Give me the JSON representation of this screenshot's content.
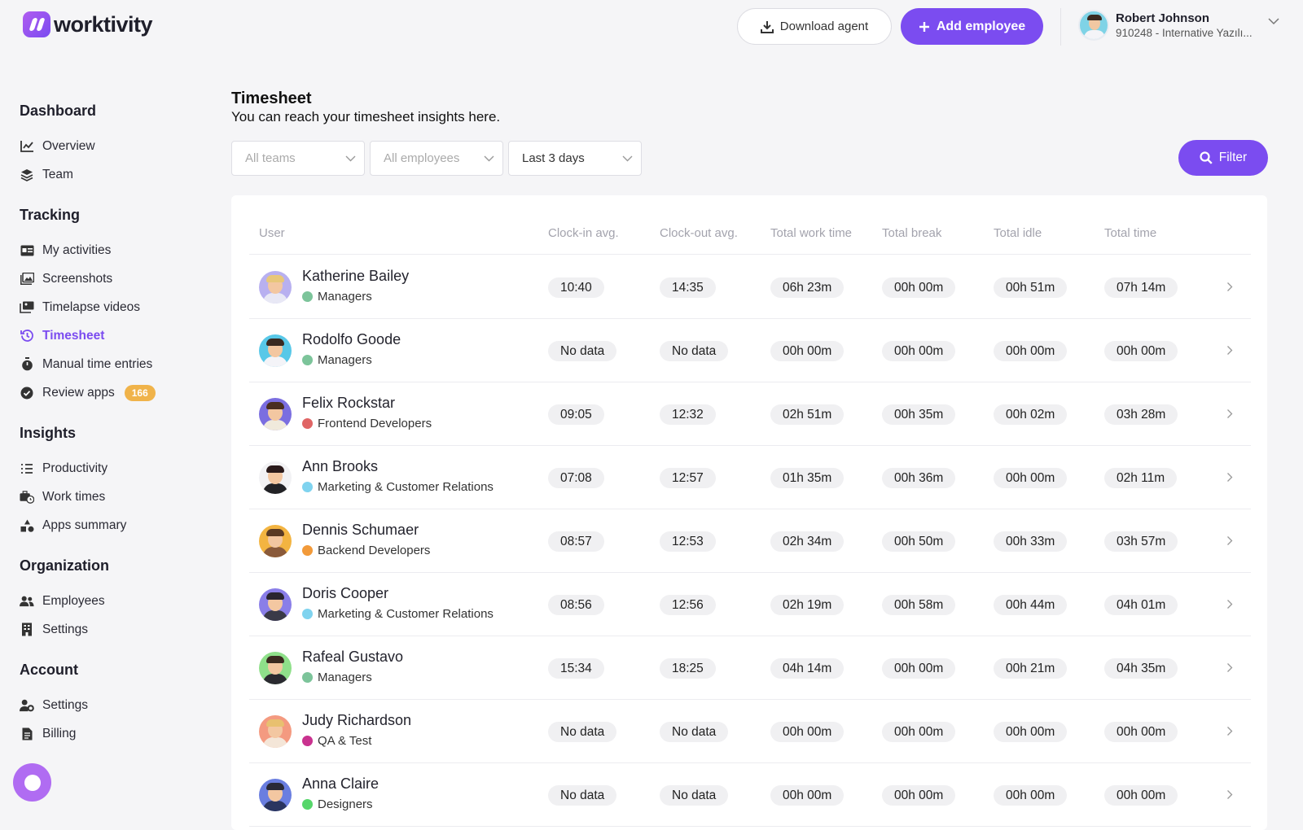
{
  "brand": {
    "name": "worktivity"
  },
  "header": {
    "download_label": "Download agent",
    "add_employee_label": "Add employee",
    "user_name": "Robert Johnson",
    "user_org": "910248 - Internative Yazılı..."
  },
  "sidebar": {
    "sections": [
      {
        "title": "Dashboard",
        "items": [
          {
            "label": "Overview",
            "icon": "chart-line-icon"
          },
          {
            "label": "Team",
            "icon": "layers-icon"
          }
        ]
      },
      {
        "title": "Tracking",
        "items": [
          {
            "label": "My activities",
            "icon": "id-card-icon"
          },
          {
            "label": "Screenshots",
            "icon": "image-icon"
          },
          {
            "label": "Timelapse videos",
            "icon": "images-icon"
          },
          {
            "label": "Timesheet",
            "icon": "history-icon",
            "active": true
          },
          {
            "label": "Manual time entries",
            "icon": "stopwatch-icon"
          },
          {
            "label": "Review apps",
            "icon": "check-circle-icon",
            "badge": "166"
          }
        ]
      },
      {
        "title": "Insights",
        "items": [
          {
            "label": "Productivity",
            "icon": "list-icon"
          },
          {
            "label": "Work times",
            "icon": "briefcase-clock-icon"
          },
          {
            "label": "Apps summary",
            "icon": "shapes-icon"
          }
        ]
      },
      {
        "title": "Organization",
        "items": [
          {
            "label": "Employees",
            "icon": "users-icon"
          },
          {
            "label": "Settings",
            "icon": "building-icon"
          }
        ]
      },
      {
        "title": "Account",
        "items": [
          {
            "label": "Settings",
            "icon": "user-gear-icon"
          },
          {
            "label": "Billing",
            "icon": "receipt-icon"
          }
        ]
      }
    ]
  },
  "page": {
    "title": "Timesheet",
    "subtitle": "You can reach your timesheet insights here."
  },
  "filters": {
    "teams": "All teams",
    "employees": "All employees",
    "range": "Last 3 days",
    "filter_label": "Filter"
  },
  "table": {
    "columns": [
      "User",
      "Clock-in avg.",
      "Clock-out avg.",
      "Total work time",
      "Total break",
      "Total idle",
      "Total time"
    ],
    "rows": [
      {
        "name": "Katherine Bailey",
        "team": "Managers",
        "team_color": "#7cc49a",
        "avatar_bg": "#b8b0f0",
        "hair": "#e8c77a",
        "shirt": "#e8e8f5",
        "clock_in": "10:40",
        "clock_out": "14:35",
        "work": "06h 23m",
        "break": "00h 00m",
        "idle": "00h 51m",
        "total": "07h 14m"
      },
      {
        "name": "Rodolfo Goode",
        "team": "Managers",
        "team_color": "#7cc49a",
        "avatar_bg": "#58c8e8",
        "hair": "#3a2a22",
        "shirt": "#f4f4f8",
        "clock_in": "No data",
        "clock_out": "No data",
        "work": "00h 00m",
        "break": "00h 00m",
        "idle": "00h 00m",
        "total": "00h 00m"
      },
      {
        "name": "Felix Rockstar",
        "team": "Frontend Developers",
        "team_color": "#e06565",
        "avatar_bg": "#7b6ee0",
        "hair": "#4a2e20",
        "shirt": "#f0eadc",
        "clock_in": "09:05",
        "clock_out": "12:32",
        "work": "02h 51m",
        "break": "00h 35m",
        "idle": "00h 02m",
        "total": "03h 28m"
      },
      {
        "name": "Ann Brooks",
        "team": "Marketing & Customer Relations",
        "team_color": "#7fd3ef",
        "avatar_bg": "#f2f2f4",
        "hair": "#2a1a1a",
        "shirt": "#222226",
        "clock_in": "07:08",
        "clock_out": "12:57",
        "work": "01h 35m",
        "break": "00h 36m",
        "idle": "00h 00m",
        "total": "02h 11m"
      },
      {
        "name": "Dennis Schumaer",
        "team": "Backend Developers",
        "team_color": "#f29a3a",
        "avatar_bg": "#f3b441",
        "hair": "#5a3a24",
        "shirt": "#8a5a3a",
        "clock_in": "08:57",
        "clock_out": "12:53",
        "work": "02h 34m",
        "break": "00h 50m",
        "idle": "00h 33m",
        "total": "03h 57m"
      },
      {
        "name": "Doris Cooper",
        "team": "Marketing & Customer Relations",
        "team_color": "#7fd3ef",
        "avatar_bg": "#8a7ee8",
        "hair": "#2a2530",
        "shirt": "#3a3a48",
        "clock_in": "08:56",
        "clock_out": "12:56",
        "work": "02h 19m",
        "break": "00h 58m",
        "idle": "00h 44m",
        "total": "04h 01m"
      },
      {
        "name": "Rafeal Gustavo",
        "team": "Managers",
        "team_color": "#7cc49a",
        "avatar_bg": "#8fe08a",
        "hair": "#3a2a20",
        "shirt": "#2a2a30",
        "clock_in": "15:34",
        "clock_out": "18:25",
        "work": "04h 14m",
        "break": "00h 00m",
        "idle": "00h 21m",
        "total": "04h 35m"
      },
      {
        "name": "Judy Richardson",
        "team": "QA & Test",
        "team_color": "#c9328f",
        "avatar_bg": "#f49a80",
        "hair": "#e8c070",
        "shirt": "#f4e6d8",
        "clock_in": "No data",
        "clock_out": "No data",
        "work": "00h 00m",
        "break": "00h 00m",
        "idle": "00h 00m",
        "total": "00h 00m"
      },
      {
        "name": "Anna Claire",
        "team": "Designers",
        "team_color": "#56d66a",
        "avatar_bg": "#6a7ee0",
        "hair": "#2a2a38",
        "shirt": "#2a3560",
        "clock_in": "No data",
        "clock_out": "No data",
        "work": "00h 00m",
        "break": "00h 00m",
        "idle": "00h 00m",
        "total": "00h 00m"
      }
    ]
  }
}
